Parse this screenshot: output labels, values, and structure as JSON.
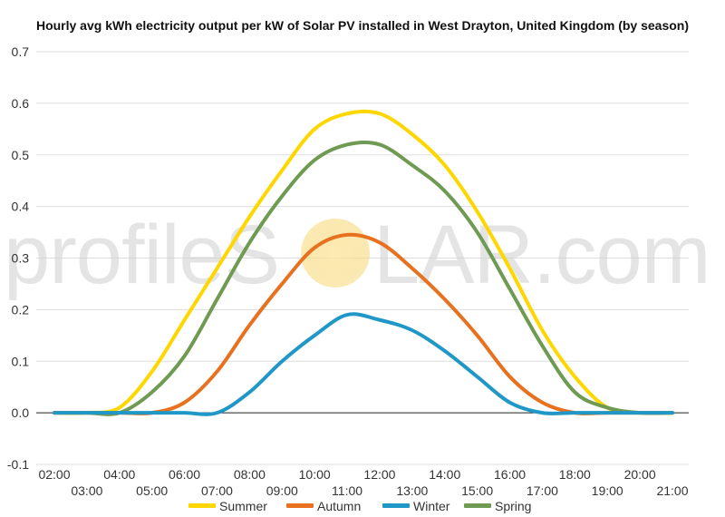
{
  "chart_data": {
    "type": "line",
    "title": "Hourly avg kWh electricity output per kW of Solar PV installed in West Drayton, United Kingdom (by season)",
    "xlabel": "",
    "ylabel": "",
    "ylim": [
      -0.1,
      0.7
    ],
    "yticks": [
      "-0.1",
      "0.0",
      "0.1",
      "0.2",
      "0.3",
      "0.4",
      "0.5",
      "0.6",
      "0.7"
    ],
    "x": [
      "02:00",
      "03:00",
      "04:00",
      "05:00",
      "06:00",
      "07:00",
      "08:00",
      "09:00",
      "10:00",
      "11:00",
      "12:00",
      "13:00",
      "14:00",
      "15:00",
      "16:00",
      "17:00",
      "18:00",
      "19:00",
      "20:00",
      "21:00"
    ],
    "grid": true,
    "legend_position": "bottom",
    "series": [
      {
        "name": "Summer",
        "color": "#FFD700",
        "values": [
          0.0,
          0.0,
          0.01,
          0.08,
          0.18,
          0.28,
          0.38,
          0.47,
          0.55,
          0.58,
          0.58,
          0.54,
          0.48,
          0.39,
          0.28,
          0.16,
          0.07,
          0.01,
          0.0,
          0.0
        ]
      },
      {
        "name": "Autumn",
        "color": "#E8711F",
        "values": [
          0.0,
          0.0,
          0.0,
          0.0,
          0.02,
          0.08,
          0.17,
          0.25,
          0.32,
          0.345,
          0.33,
          0.28,
          0.22,
          0.15,
          0.07,
          0.02,
          0.0,
          0.0,
          0.0,
          0.0
        ]
      },
      {
        "name": "Winter",
        "color": "#1F97C7",
        "values": [
          0.0,
          0.0,
          0.0,
          0.0,
          0.0,
          0.0,
          0.04,
          0.1,
          0.15,
          0.19,
          0.18,
          0.16,
          0.12,
          0.07,
          0.02,
          0.0,
          0.0,
          0.0,
          0.0,
          0.0
        ]
      },
      {
        "name": "Spring",
        "color": "#6E9A52",
        "values": [
          0.0,
          0.0,
          0.0,
          0.04,
          0.11,
          0.22,
          0.33,
          0.42,
          0.49,
          0.52,
          0.52,
          0.48,
          0.43,
          0.35,
          0.24,
          0.13,
          0.04,
          0.01,
          0.0,
          0.0
        ]
      }
    ]
  },
  "watermark": {
    "part1": "profileS",
    "part2": "LAR.com",
    "sun_color": "#F7D774"
  }
}
